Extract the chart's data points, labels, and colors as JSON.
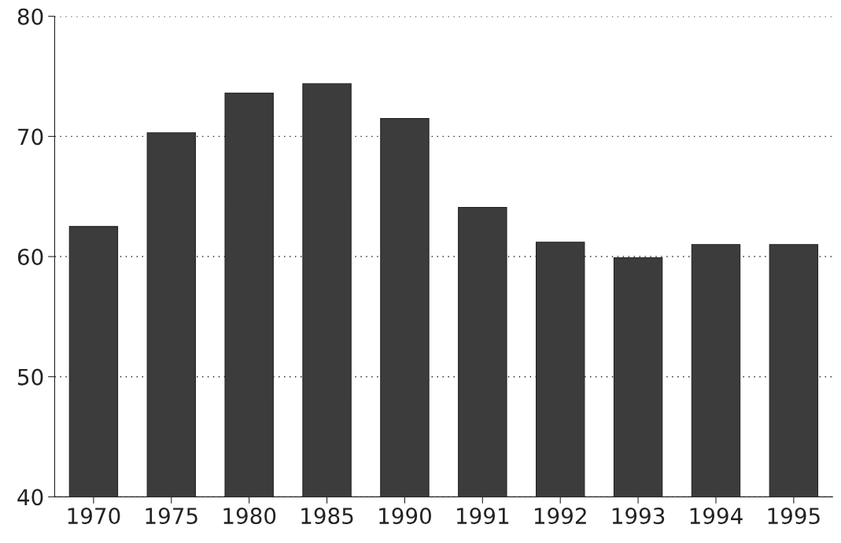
{
  "chart_data": {
    "type": "bar",
    "categories": [
      "1970",
      "1975",
      "1980",
      "1985",
      "1990",
      "1991",
      "1992",
      "1993",
      "1994",
      "1995"
    ],
    "values": [
      62.5,
      70.3,
      73.6,
      74.4,
      71.5,
      64.1,
      61.2,
      59.9,
      61.0,
      61.0
    ],
    "color": "#3c3c3c",
    "ylim": [
      40,
      80
    ],
    "yticks": [
      40,
      50,
      60,
      70,
      80
    ],
    "grid": "y"
  }
}
